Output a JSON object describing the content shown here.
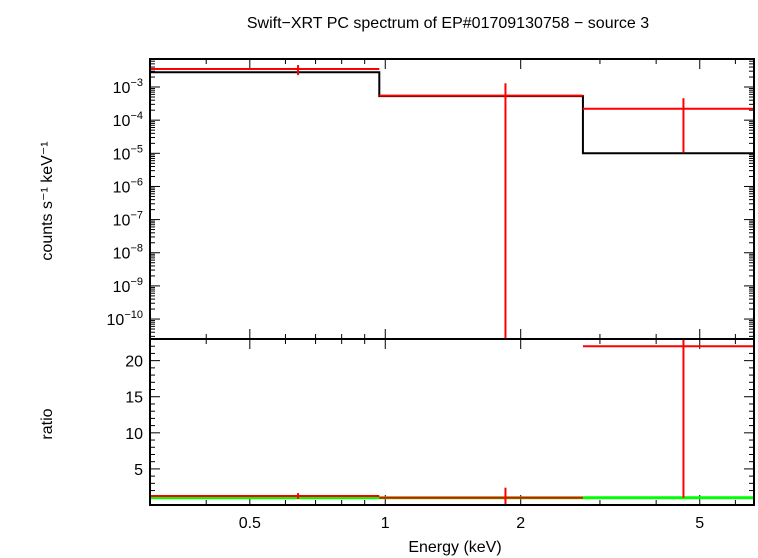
{
  "chart_data": [
    {
      "type": "line",
      "title": "Swift−XRT PC spectrum of EP#01709130758 − source 3",
      "xlabel": "",
      "ylabel": "counts s⁻¹ keV⁻¹",
      "xscale": "log",
      "yscale": "log",
      "xlim": [
        0.3,
        6.6
      ],
      "ylim": [
        2.5e-11,
        0.007
      ],
      "x_ticks": [
        {
          "value": 0.5,
          "label": ""
        },
        {
          "value": 1,
          "label": ""
        },
        {
          "value": 2,
          "label": ""
        },
        {
          "value": 5,
          "label": ""
        }
      ],
      "y_ticks": [
        {
          "value": 0.001,
          "base": "10",
          "exp": "−3"
        },
        {
          "value": 0.0001,
          "base": "10",
          "exp": "−4"
        },
        {
          "value": 1e-05,
          "base": "10",
          "exp": "−5"
        },
        {
          "value": 1e-06,
          "base": "10",
          "exp": "−6"
        },
        {
          "value": 1e-07,
          "base": "10",
          "exp": "−7"
        },
        {
          "value": 1e-08,
          "base": "10",
          "exp": "−8"
        },
        {
          "value": 1e-09,
          "base": "10",
          "exp": "−9"
        },
        {
          "value": 1e-10,
          "base": "10",
          "exp": "−10"
        }
      ],
      "data": {
        "color": "#ff0000",
        "points": [
          {
            "x": 0.64,
            "xlo": 0.3,
            "xhi": 0.97,
            "y": 0.0035,
            "ylo": 0.0023,
            "yhi": 0.0046
          },
          {
            "x": 1.85,
            "xlo": 0.97,
            "xhi": 2.75,
            "y": 0.00055,
            "ylo": 2.5e-11,
            "yhi": 0.0013
          },
          {
            "x": 4.6,
            "xlo": 2.75,
            "xhi": 6.6,
            "y": 0.00022,
            "ylo": 1.05e-05,
            "yhi": 0.00046
          }
        ]
      },
      "model": {
        "color": "#000000",
        "steps": [
          {
            "xlo": 0.3,
            "xhi": 0.97,
            "y": 0.0028
          },
          {
            "xlo": 0.97,
            "xhi": 2.75,
            "y": 0.00053
          },
          {
            "xlo": 2.75,
            "xhi": 6.6,
            "y": 1e-05
          }
        ]
      }
    },
    {
      "type": "line",
      "title": "",
      "xlabel": "Energy (keV)",
      "ylabel": "ratio",
      "xscale": "log",
      "yscale": "linear",
      "xlim": [
        0.3,
        6.6
      ],
      "ylim": [
        0,
        23
      ],
      "x_ticks": [
        {
          "value": 0.5,
          "label": "0.5"
        },
        {
          "value": 1,
          "label": "1"
        },
        {
          "value": 2,
          "label": "2"
        },
        {
          "value": 5,
          "label": "5"
        }
      ],
      "y_ticks": [
        {
          "value": 5,
          "label": "5"
        },
        {
          "value": 10,
          "label": "10"
        },
        {
          "value": 15,
          "label": "15"
        },
        {
          "value": 20,
          "label": "20"
        }
      ],
      "data": {
        "color": "#ff0000",
        "points": [
          {
            "x": 0.64,
            "xlo": 0.3,
            "xhi": 0.97,
            "y": 1.25,
            "ylo": 0.85,
            "yhi": 1.65
          },
          {
            "x": 1.85,
            "xlo": 0.97,
            "xhi": 2.75,
            "y": 1.0,
            "ylo": 0.0,
            "yhi": 2.4
          },
          {
            "x": 4.6,
            "xlo": 2.75,
            "xhi": 6.6,
            "y": 22.0,
            "ylo": 1.0,
            "yhi": 23.0
          }
        ]
      },
      "reference_line": {
        "y": 1,
        "color": "#00ff00"
      }
    }
  ]
}
